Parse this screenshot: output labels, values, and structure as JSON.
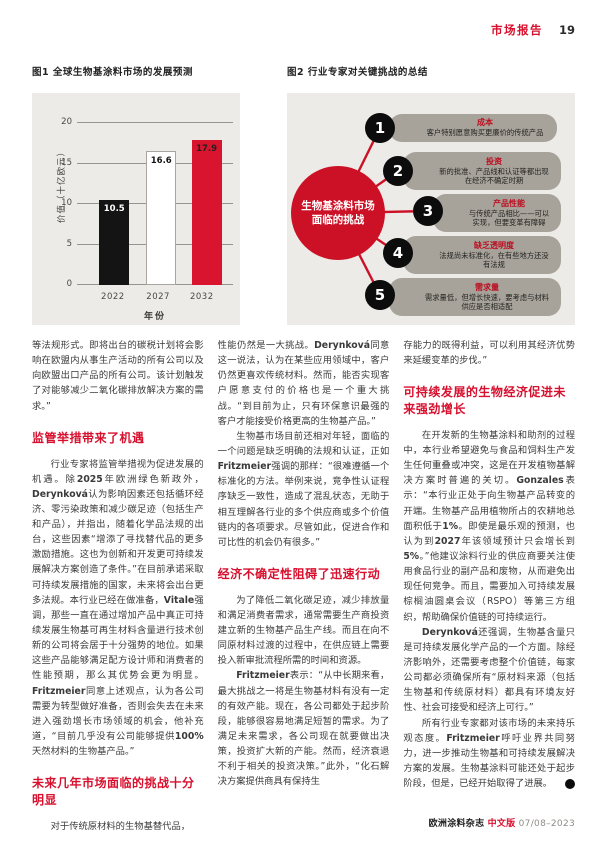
{
  "page": {
    "header": {
      "section": "市场报告",
      "page_number": "19"
    },
    "footer": {
      "journal": "欧洲涂料杂志",
      "edition": "中文版",
      "issue": "07/08–2023"
    }
  },
  "figure1": {
    "caption": "图1 全球生物基涂料市场的发展预测"
  },
  "chart_data": {
    "type": "bar",
    "title": "图1 全球生物基涂料市场的发展预测",
    "categories": [
      "2022",
      "2027",
      "2032"
    ],
    "values": [
      10.5,
      16.6,
      17.9
    ],
    "xlabel": "年份",
    "ylabel": "价值（十亿欧元）",
    "ylim": [
      0,
      20
    ],
    "yticks": [
      0,
      5,
      10,
      15,
      20
    ],
    "grid": true,
    "legend": false,
    "bar_colors": [
      "#141414",
      "#ffffff",
      "#d8142e"
    ],
    "value_label_colors": [
      "#ffffff",
      "#141414",
      "#24201f"
    ]
  },
  "figure2": {
    "caption": "图2 行业专家对关键挑战的总结",
    "center": "生物基涂料市场面临的挑战",
    "accent_color": "#cc1126",
    "items": [
      {
        "num": "1",
        "title": "成本",
        "text": "客户特别愿意购买更廉价的传统产品"
      },
      {
        "num": "2",
        "title": "投资",
        "text": "新的批准、产品线和认证等都出现在经济不确定时期"
      },
      {
        "num": "3",
        "title": "产品性能",
        "text": "与传统产品相比——可以实现，但要变革有障碍"
      },
      {
        "num": "4",
        "title": "缺乏透明度",
        "text": "法规尚未标准化，在有些地方还没有法规"
      },
      {
        "num": "5",
        "title": "需求量",
        "text": "需求量低，但增长快速，要考虑与材料供应是否相适配"
      }
    ]
  },
  "article": {
    "columns": [
      {
        "blocks": [
          {
            "type": "p",
            "indent": false,
            "text": "等法规形式。即将出台的碳税计划将会影响在欧盟内从事生产活动的所有公司以及向欧盟出口产品的所有公司。该计划触发了对能够减少二氧化碳排放解决方案的需求。”"
          },
          {
            "type": "h",
            "text": "监管举措带来了机遇"
          },
          {
            "type": "p",
            "indent": true,
            "text": "行业专家将监管举措视为促进发展的机遇。除**2025**年欧洲绿色新政外，**Derynková**认为影响因素还包括循环经济、零污染政策和减少碳足迹（包括生产和产品），并指出，随着化学品法规的出台，这些因素“增添了寻找替代品的更多激励措施。这也为创新和开发更可持续发展解决方案创造了条件。”在目前承诺采取可持续发展措施的国家，未来将会出台更多法规。本行业已经在做准备，**Vitale**强调，那些一直在通过增加产品中真正可持续发展生物基可再生材料含量进行技术创新的公司将会居于十分强势的地位。如果这些产品能够满足配方设计师和消费者的性能预期，那么其优势会更为明显。**Fritzmeier**同意上述观点，认为各公司需要为转型做好准备，否则会失去在未来进入强劲增长市场领域的机会，他补充道，“目前几乎没有公司能够提供**100%**天然材料的生物基产品。”"
          },
          {
            "type": "h",
            "text": "未来几年市场面临的挑战十分明显"
          },
          {
            "type": "p",
            "indent": true,
            "text": "对于传统原材料的生物基替代品，"
          }
        ]
      },
      {
        "blocks": [
          {
            "type": "p",
            "indent": false,
            "text": "性能仍然是一大挑战。**Derynková**同意这一说法，认为在某些应用领域中，客户仍然更喜欢传统材料。然而，能否实现客户愿意支付的价格也是一个重大挑战。“到目前为止，只有环保意识最强的客户才能接受价格更高的生物基产品。”"
          },
          {
            "type": "p",
            "indent": true,
            "text": "生物基市场目前还相对年轻，面临的一个问题是缺乏明确的法规和认证，正如**Fritzmeier**强调的那样：“很难遵循一个标准化的方法。举例来说，竞争性认证程序缺乏一致性，造成了混乱状态，无助于相互理解各行业的多个供应商或多个价值链内的各项要求。尽管如此，促进合作和可比性的机会仍有很多。”"
          },
          {
            "type": "h",
            "text": "经济不确定性阻碍了迅速行动"
          },
          {
            "type": "p",
            "indent": true,
            "text": "为了降低二氧化碳足迹，减少排放量和满足消费者需求，通常需要生产商投资建立新的生物基产品生产线。而且在向不同原材料过渡的过程中，在供应链上需要投入新审批流程所需的时间和资源。"
          },
          {
            "type": "p",
            "indent": true,
            "text": "**Fritzmeier**表示：“从中长期来看，最大挑战之一将是生物基材料有没有一定的有效产能。现在，各公司都处于起步阶段，能够很容易地满足短暂的需求。为了满足未来需求，各公司现在就要做出决策，投资扩大新的产能。然而，经济衰退不利于相关的投资决策。”此外，“化石解决方案提供商具有保持生"
          }
        ]
      },
      {
        "blocks": [
          {
            "type": "p",
            "indent": false,
            "text": "存能力的既得利益，可以利用其经济优势来延缓变革的步伐。”"
          },
          {
            "type": "h",
            "text": "可持续发展的生物经济促进未来强劲增长"
          },
          {
            "type": "p",
            "indent": true,
            "text": "在开发新的生物基涂料和助剂的过程中，本行业希望避免与食品和饲料生产发生任何重叠或冲突，这是在开发植物基解决方案时普遍的关切。**Gonzales**表示：“本行业正处于向生物基产品转变的开端。生物基产品用植物所占的农耕地总面积低于**1%**。即使是最乐观的预测，也认为到**2027**年该领域预计只会增长到**5%**。”他建议涂料行业的供应商要关注使用食品行业的副产品和废物，从而避免出现任何竞争。而且，需要加入可持续发展棕榈油圆桌会议（RSPO）等第三方组织，帮助确保价值链的可持续运行。"
          },
          {
            "type": "p",
            "indent": true,
            "text": "**Derynková**还强调，生物基含量只是可持续发展化学产品的一个方面。除经济影响外，还需要考虑整个价值链，每家公司都必须确保所有“原材料来源（包括生物基和传统原材料）都具有环境友好性、社会可接受和经济上可行。”"
          },
          {
            "type": "p",
            "indent": true,
            "end": true,
            "text": "所有行业专家都对该市场的未来持乐观态度。**Fritzmeier**呼吁业界共同努力，进一步推动生物基和可持续发展解决方案的发展。生物基涂料可能还处于起步阶段，但是，已经开始取得了进展。"
          }
        ]
      }
    ]
  }
}
